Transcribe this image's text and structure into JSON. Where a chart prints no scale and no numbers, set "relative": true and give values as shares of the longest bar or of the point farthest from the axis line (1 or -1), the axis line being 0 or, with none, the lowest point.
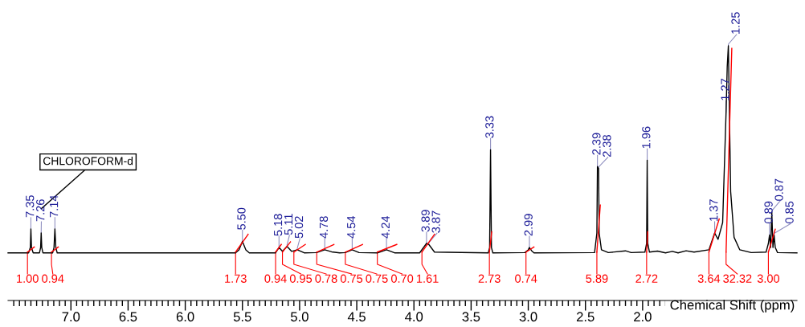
{
  "chart_data": {
    "type": "line",
    "relative": true,
    "xlabel": "Chemical Shift (ppm)",
    "xlim": [
      7.55,
      0.65
    ],
    "xticks": [
      {
        "value": 7.5,
        "label": null
      },
      {
        "value": 7.45,
        "label": null
      },
      {
        "value": 7.4,
        "label": null
      },
      {
        "value": 7.35,
        "label": null
      },
      {
        "value": 7.3,
        "label": null
      },
      {
        "value": 7.25,
        "label": null
      },
      {
        "value": 7.2,
        "label": null
      },
      {
        "value": 7.15,
        "label": null
      },
      {
        "value": 7.1,
        "label": null
      },
      {
        "value": 7.05,
        "label": null
      },
      {
        "value": 7.0,
        "label": "7.0"
      },
      {
        "value": 6.95,
        "label": null
      },
      {
        "value": 6.9,
        "label": null
      },
      {
        "value": 6.85,
        "label": null
      },
      {
        "value": 6.8,
        "label": null
      },
      {
        "value": 6.75,
        "label": null
      },
      {
        "value": 6.7,
        "label": null
      },
      {
        "value": 6.65,
        "label": null
      },
      {
        "value": 6.6,
        "label": null
      },
      {
        "value": 6.55,
        "label": null
      },
      {
        "value": 6.5,
        "label": "6.5"
      },
      {
        "value": 6.45,
        "label": null
      },
      {
        "value": 6.4,
        "label": null
      },
      {
        "value": 6.35,
        "label": null
      },
      {
        "value": 6.3,
        "label": null
      },
      {
        "value": 6.25,
        "label": null
      },
      {
        "value": 6.2,
        "label": null
      },
      {
        "value": 6.15,
        "label": null
      },
      {
        "value": 6.1,
        "label": null
      },
      {
        "value": 6.05,
        "label": null
      },
      {
        "value": 6.0,
        "label": "6.0"
      },
      {
        "value": 5.95,
        "label": null
      },
      {
        "value": 5.9,
        "label": null
      },
      {
        "value": 5.85,
        "label": null
      },
      {
        "value": 5.8,
        "label": null
      },
      {
        "value": 5.75,
        "label": null
      },
      {
        "value": 5.7,
        "label": null
      },
      {
        "value": 5.65,
        "label": null
      },
      {
        "value": 5.6,
        "label": null
      },
      {
        "value": 5.55,
        "label": null
      },
      {
        "value": 5.5,
        "label": "5.5"
      },
      {
        "value": 5.45,
        "label": null
      },
      {
        "value": 5.4,
        "label": null
      },
      {
        "value": 5.35,
        "label": null
      },
      {
        "value": 5.3,
        "label": null
      },
      {
        "value": 5.25,
        "label": null
      },
      {
        "value": 5.2,
        "label": null
      },
      {
        "value": 5.15,
        "label": null
      },
      {
        "value": 5.1,
        "label": null
      },
      {
        "value": 5.05,
        "label": null
      },
      {
        "value": 5.0,
        "label": "5.0"
      },
      {
        "value": 4.95,
        "label": null
      },
      {
        "value": 4.9,
        "label": null
      },
      {
        "value": 4.85,
        "label": null
      },
      {
        "value": 4.8,
        "label": null
      },
      {
        "value": 4.75,
        "label": null
      },
      {
        "value": 4.7,
        "label": null
      },
      {
        "value": 4.65,
        "label": null
      },
      {
        "value": 4.6,
        "label": null
      },
      {
        "value": 4.55,
        "label": null
      },
      {
        "value": 4.5,
        "label": "4.5"
      },
      {
        "value": 4.45,
        "label": null
      },
      {
        "value": 4.4,
        "label": null
      },
      {
        "value": 4.35,
        "label": null
      },
      {
        "value": 4.3,
        "label": null
      },
      {
        "value": 4.25,
        "label": null
      },
      {
        "value": 4.2,
        "label": null
      },
      {
        "value": 4.15,
        "label": null
      },
      {
        "value": 4.1,
        "label": null
      },
      {
        "value": 4.05,
        "label": null
      },
      {
        "value": 4.0,
        "label": "4.0"
      },
      {
        "value": 3.95,
        "label": null
      },
      {
        "value": 3.9,
        "label": null
      },
      {
        "value": 3.85,
        "label": null
      },
      {
        "value": 3.8,
        "label": null
      },
      {
        "value": 3.75,
        "label": null
      },
      {
        "value": 3.7,
        "label": null
      },
      {
        "value": 3.65,
        "label": null
      },
      {
        "value": 3.6,
        "label": null
      },
      {
        "value": 3.55,
        "label": null
      },
      {
        "value": 3.5,
        "label": "3.5"
      },
      {
        "value": 3.45,
        "label": null
      },
      {
        "value": 3.4,
        "label": null
      },
      {
        "value": 3.35,
        "label": null
      },
      {
        "value": 3.3,
        "label": null
      },
      {
        "value": 3.25,
        "label": null
      },
      {
        "value": 3.2,
        "label": null
      },
      {
        "value": 3.15,
        "label": null
      },
      {
        "value": 3.1,
        "label": null
      },
      {
        "value": 3.05,
        "label": null
      },
      {
        "value": 3.0,
        "label": "3.0"
      },
      {
        "value": 2.95,
        "label": null
      },
      {
        "value": 2.9,
        "label": null
      },
      {
        "value": 2.85,
        "label": null
      },
      {
        "value": 2.8,
        "label": null
      },
      {
        "value": 2.75,
        "label": null
      },
      {
        "value": 2.7,
        "label": null
      },
      {
        "value": 2.65,
        "label": null
      },
      {
        "value": 2.6,
        "label": null
      },
      {
        "value": 2.55,
        "label": null
      },
      {
        "value": 2.5,
        "label": "2.5"
      },
      {
        "value": 2.45,
        "label": null
      },
      {
        "value": 2.4,
        "label": null
      },
      {
        "value": 2.35,
        "label": null
      },
      {
        "value": 2.3,
        "label": null
      },
      {
        "value": 2.25,
        "label": null
      },
      {
        "value": 2.2,
        "label": null
      },
      {
        "value": 2.15,
        "label": null
      },
      {
        "value": 2.1,
        "label": null
      },
      {
        "value": 2.05,
        "label": null
      },
      {
        "value": 2.0,
        "label": "2.0"
      },
      {
        "value": 1.95,
        "label": null
      },
      {
        "value": 1.9,
        "label": null
      },
      {
        "value": 1.85,
        "label": null
      },
      {
        "value": 1.8,
        "label": null
      },
      {
        "value": 1.75,
        "label": null
      },
      {
        "value": 1.7,
        "label": null
      },
      {
        "value": 1.65,
        "label": null
      },
      {
        "value": 1.6,
        "label": null
      },
      {
        "value": 1.55,
        "label": null
      },
      {
        "value": 1.5,
        "label": null
      },
      {
        "value": 1.45,
        "label": null
      },
      {
        "value": 1.4,
        "label": null
      },
      {
        "value": 1.35,
        "label": null
      },
      {
        "value": 1.3,
        "label": null
      },
      {
        "value": 1.25,
        "label": null
      },
      {
        "value": 1.2,
        "label": null
      },
      {
        "value": 1.15,
        "label": null
      },
      {
        "value": 1.1,
        "label": null
      },
      {
        "value": 1.05,
        "label": null
      },
      {
        "value": 1.0,
        "label": null
      },
      {
        "value": 0.95,
        "label": null
      },
      {
        "value": 0.9,
        "label": null
      },
      {
        "value": 0.85,
        "label": null
      },
      {
        "value": 0.8,
        "label": null
      },
      {
        "value": 0.75,
        "label": null
      },
      {
        "value": 0.7,
        "label": null
      }
    ],
    "series": [
      {
        "color": "#000000",
        "x": [
          7.55,
          7.37,
          7.355,
          7.35,
          7.345,
          7.33,
          7.275,
          7.265,
          7.26,
          7.255,
          7.245,
          7.16,
          7.148,
          7.14,
          7.132,
          7.12,
          5.56,
          5.53,
          5.5,
          5.47,
          5.44,
          5.21,
          5.18,
          5.15,
          5.11,
          5.07,
          5.02,
          4.96,
          4.85,
          4.78,
          4.72,
          4.65,
          4.6,
          4.54,
          4.48,
          4.32,
          4.24,
          4.17,
          3.95,
          3.89,
          3.87,
          3.82,
          3.35,
          3.338,
          3.33,
          3.322,
          3.31,
          3.03,
          3.0,
          2.99,
          2.97,
          2.95,
          2.42,
          2.4,
          2.395,
          2.385,
          2.38,
          2.36,
          2.3,
          2.15,
          2.1,
          1.98,
          1.965,
          1.96,
          1.955,
          1.94,
          1.87,
          1.8,
          1.74,
          1.69,
          1.62,
          1.55,
          1.42,
          1.37,
          1.34,
          1.3,
          1.27,
          1.26,
          1.25,
          1.23,
          1.2,
          1.15,
          1.05,
          0.92,
          0.9,
          0.89,
          0.88,
          0.87,
          0.86,
          0.85,
          0.84,
          0.82,
          0.65
        ],
        "values": [
          0.187,
          0.187,
          0.208,
          0.281,
          0.208,
          0.187,
          0.187,
          0.208,
          0.265,
          0.208,
          0.187,
          0.187,
          0.208,
          0.281,
          0.208,
          0.187,
          0.187,
          0.199,
          0.232,
          0.199,
          0.187,
          0.187,
          0.208,
          0.193,
          0.212,
          0.193,
          0.199,
          0.187,
          0.188,
          0.199,
          0.191,
          0.187,
          0.188,
          0.199,
          0.188,
          0.187,
          0.199,
          0.187,
          0.187,
          0.224,
          0.22,
          0.19,
          0.187,
          0.208,
          0.592,
          0.208,
          0.187,
          0.188,
          0.199,
          0.208,
          0.195,
          0.187,
          0.188,
          0.265,
          0.526,
          0.518,
          0.265,
          0.199,
          0.188,
          0.195,
          0.188,
          0.19,
          0.224,
          0.551,
          0.224,
          0.19,
          0.194,
          0.187,
          0.193,
          0.187,
          0.195,
          0.19,
          0.199,
          0.265,
          0.24,
          0.306,
          0.739,
          0.918,
          1.0,
          0.428,
          0.248,
          0.199,
          0.188,
          0.19,
          0.224,
          0.257,
          0.208,
          0.346,
          0.208,
          0.257,
          0.208,
          0.188,
          0.187
        ]
      },
      {
        "color": "#ff0000",
        "x": [
          7.38,
          7.32,
          7.3,
          7.17,
          7.11,
          7.1,
          5.56,
          5.45,
          5.4,
          5.21,
          5.16,
          5.155,
          5.15,
          5.08,
          5.06,
          5.05,
          4.95,
          4.9,
          4.85,
          4.7,
          4.65,
          4.6,
          4.45,
          4.4,
          4.32,
          4.15,
          4.0,
          3.93,
          3.82,
          3.5,
          3.34,
          3.32,
          3.1,
          3.02,
          2.95,
          2.5,
          2.4,
          2.37,
          2.2,
          1.965,
          1.955,
          1.6,
          1.42,
          1.33,
          1.3,
          1.27,
          1.22,
          1.1,
          0.9,
          0.84
        ],
        "values": [
          0.19,
          0.21,
          null,
          0.19,
          0.21,
          null,
          0.19,
          0.26,
          null,
          0.19,
          0.22,
          null,
          0.19,
          0.23,
          null,
          0.19,
          0.22,
          null,
          0.19,
          0.22,
          null,
          0.19,
          0.22,
          null,
          0.19,
          0.22,
          null,
          0.19,
          0.26,
          null,
          0.19,
          0.27,
          null,
          0.19,
          0.21,
          null,
          0.19,
          0.375,
          null,
          0.19,
          0.27,
          null,
          0.19,
          0.32,
          null,
          0.19,
          0.99,
          null,
          0.19,
          0.28
        ]
      }
    ],
    "annotations": [
      {
        "text": "CHLOROFORM-d",
        "x": 7.26
      },
      {
        "text": "7.35",
        "x": 7.35,
        "y": 0.281
      },
      {
        "text": "7.26",
        "x": 7.26,
        "y": 0.265
      },
      {
        "text": "7.14",
        "x": 7.14,
        "y": 0.281
      },
      {
        "text": "5.50",
        "x": 5.5,
        "y": 0.232
      },
      {
        "text": "5.18",
        "x": 5.18,
        "y": 0.208
      },
      {
        "text": "5.11",
        "x": 5.11,
        "y": 0.212
      },
      {
        "text": "5.02",
        "x": 5.02,
        "y": 0.199
      },
      {
        "text": "4.78",
        "x": 4.78,
        "y": 0.199
      },
      {
        "text": "4.54",
        "x": 4.54,
        "y": 0.199
      },
      {
        "text": "4.24",
        "x": 4.24,
        "y": 0.199
      },
      {
        "text": "3.89",
        "x": 3.89,
        "y": 0.224
      },
      {
        "text": "3.87",
        "x": 3.87,
        "y": 0.22
      },
      {
        "text": "3.33",
        "x": 3.33,
        "y": 0.592
      },
      {
        "text": "2.99",
        "x": 2.99,
        "y": 0.208
      },
      {
        "text": "2.39",
        "x": 2.395,
        "y": 0.526
      },
      {
        "text": "2.38",
        "x": 2.385,
        "y": 0.518
      },
      {
        "text": "1.96",
        "x": 1.96,
        "y": 0.551
      },
      {
        "text": "1.37",
        "x": 1.37,
        "y": 0.265
      },
      {
        "text": "1.27",
        "x": 1.27,
        "y": 0.739
      },
      {
        "text": "1.25",
        "x": 1.25,
        "y": 1.0
      },
      {
        "text": "0.89",
        "x": 0.89,
        "y": 0.257
      },
      {
        "text": "0.87",
        "x": 0.87,
        "y": 0.346
      },
      {
        "text": "0.85",
        "x": 0.85,
        "y": 0.257
      },
      {
        "text": "1.00",
        "x": 7.38,
        "y": 0.19
      },
      {
        "text": "0.94",
        "x": 7.17,
        "y": 0.19
      },
      {
        "text": "1.73",
        "x": 5.56,
        "y": 0.19
      },
      {
        "text": "0.94",
        "x": 5.21,
        "y": 0.19
      },
      {
        "text": "0.95",
        "x": 5.15,
        "y": 0.19
      },
      {
        "text": "0.78",
        "x": 5.05,
        "y": 0.19
      },
      {
        "text": "0.75",
        "x": 4.85,
        "y": 0.19
      },
      {
        "text": "0.75",
        "x": 4.6,
        "y": 0.19
      },
      {
        "text": "0.70",
        "x": 4.32,
        "y": 0.19
      },
      {
        "text": "1.61",
        "x": 3.93,
        "y": 0.19
      },
      {
        "text": "2.73",
        "x": 3.34,
        "y": 0.19
      },
      {
        "text": "0.74",
        "x": 3.02,
        "y": 0.19
      },
      {
        "text": "5.89",
        "x": 2.4,
        "y": 0.19
      },
      {
        "text": "2.72",
        "x": 1.965,
        "y": 0.19
      },
      {
        "text": "3.64",
        "x": 1.42,
        "y": 0.19
      },
      {
        "text": "32.32",
        "x": 1.27,
        "y": 0.19
      },
      {
        "text": "3.00",
        "x": 0.9,
        "y": 0.19
      }
    ]
  }
}
